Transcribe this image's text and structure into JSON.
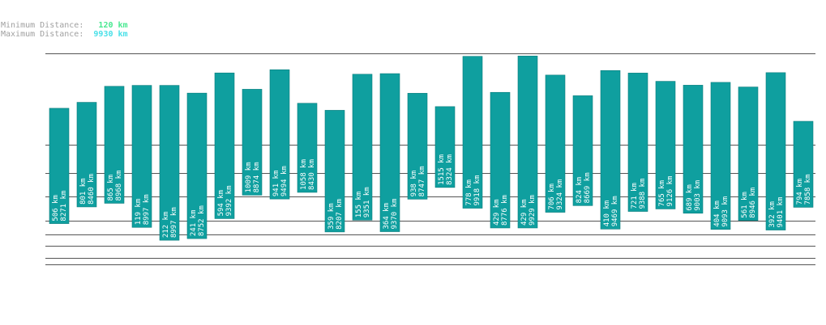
{
  "stats": {
    "min_label": "Minimum Distance:",
    "min_value": "120 km",
    "max_label": "Maximum Distance:",
    "max_value": "9930 km"
  },
  "colors": {
    "bar": "#0f9f9f",
    "bar_edge": "#0a7c7c",
    "grid": "#555555",
    "min_text": "#48e890",
    "max_text": "#48e0e8",
    "label_text": "#ffffff"
  },
  "chart_data": {
    "type": "bar",
    "unit": "km",
    "grid": true,
    "ylim": [
      0,
      10000
    ],
    "bars": [
      {
        "near": 506,
        "far": 8271
      },
      {
        "near": 801,
        "far": 8460
      },
      {
        "near": 865,
        "far": 8968
      },
      {
        "near": 119,
        "far": 8997
      },
      {
        "near": 212,
        "far": 8997
      },
      {
        "near": 241,
        "far": 8752
      },
      {
        "near": 594,
        "far": 9392
      },
      {
        "near": 1009,
        "far": 8874
      },
      {
        "near": 941,
        "far": 9494
      },
      {
        "near": 1058,
        "far": 8430
      },
      {
        "near": 359,
        "far": 8207
      },
      {
        "near": 155,
        "far": 9351
      },
      {
        "near": 364,
        "far": 9370
      },
      {
        "near": 938,
        "far": 8747
      },
      {
        "near": 1515,
        "far": 8324
      },
      {
        "near": 778,
        "far": 9918
      },
      {
        "near": 429,
        "far": 8776
      },
      {
        "near": 429,
        "far": 9929
      },
      {
        "near": 706,
        "far": 9324
      },
      {
        "near": 824,
        "far": 8669
      },
      {
        "near": 410,
        "far": 9469
      },
      {
        "near": 721,
        "far": 9388
      },
      {
        "near": 765,
        "far": 9126
      },
      {
        "near": 689,
        "far": 9003
      },
      {
        "near": 404,
        "far": 9093
      },
      {
        "near": 561,
        "far": 8946
      },
      {
        "near": 392,
        "far": 9401
      },
      {
        "near": 794,
        "far": 7858
      }
    ]
  }
}
